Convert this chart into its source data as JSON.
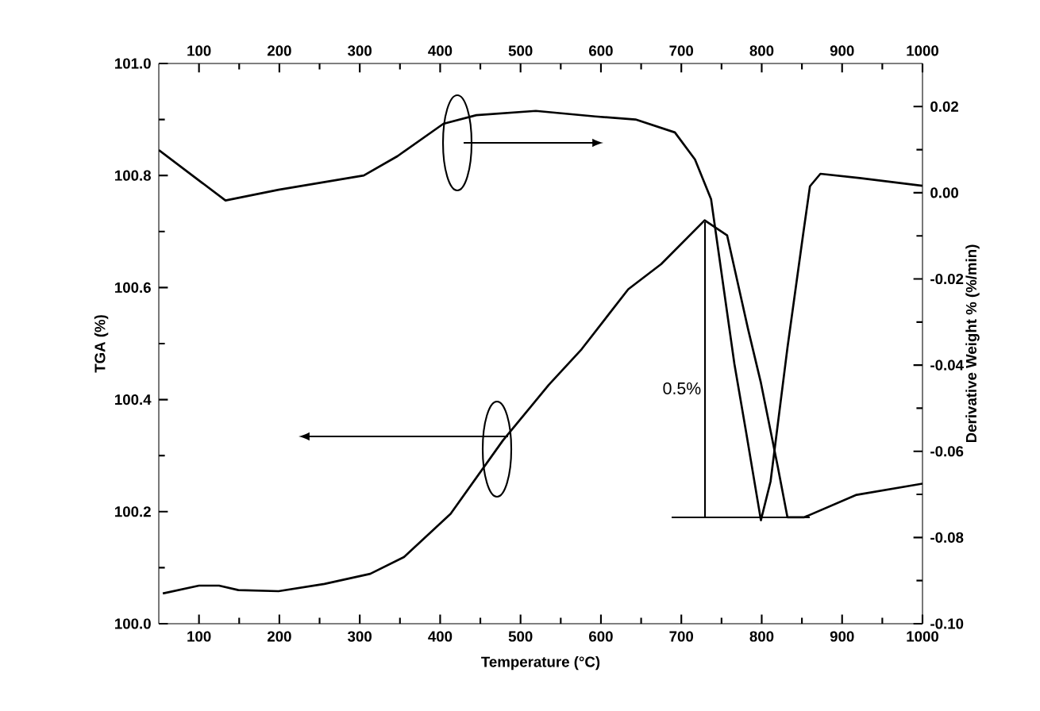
{
  "chart_data": {
    "type": "line",
    "xlabel": "Temperature (°C)",
    "ylabel": "TGA (%)",
    "y2label": "Derivative Weight % (%/min)",
    "xlim": [
      50,
      1000
    ],
    "xticks": [
      100,
      200,
      300,
      400,
      500,
      600,
      700,
      800,
      900,
      1000
    ],
    "x2lim": [
      50,
      1000
    ],
    "x2ticks": [
      100,
      200,
      300,
      400,
      500,
      600,
      700,
      800,
      900,
      1000
    ],
    "ylim": [
      100.0,
      101.0
    ],
    "yticks": [
      {
        "value": 100.0,
        "label": "100.0"
      },
      100.2,
      100.4,
      100.6,
      100.8,
      {
        "value": 101.0,
        "label": "101.0"
      }
    ],
    "y2lim": [
      -0.1,
      0.03
    ],
    "y2ticks": [
      {
        "value": -0.1,
        "label": "-0.10"
      },
      -0.08,
      -0.06,
      -0.04,
      -0.02,
      {
        "value": 0.0,
        "label": "0.00"
      },
      0.02
    ],
    "grid": false,
    "marker": "none",
    "line_style": "solid",
    "annotations": [
      "0.5%"
    ],
    "series": [
      {
        "color": "#000000",
        "axis": "y",
        "x": [
          55,
          100,
          125,
          149,
          199,
          256,
          313,
          355,
          413,
          478,
          535,
          576,
          634,
          675,
          729,
          757,
          783,
          799,
          820,
          832,
          853,
          918,
          1000
        ],
        "values": [
          100.054,
          100.068,
          100.068,
          100.06,
          100.058,
          100.071,
          100.089,
          100.119,
          100.196,
          100.327,
          100.426,
          100.49,
          100.597,
          100.642,
          100.72,
          100.693,
          100.526,
          100.43,
          100.28,
          100.19,
          100.19,
          100.23,
          100.25
        ]
      },
      {
        "color": "#000000",
        "axis": "y2",
        "x": [
          50,
          133,
          199,
          305,
          347,
          404,
          445,
          519,
          593,
          643,
          692,
          717,
          737,
          766,
          781,
          799,
          811,
          832,
          852,
          860,
          873,
          922,
          1000
        ],
        "values": [
          0.0099,
          -0.0018,
          0.0007,
          0.004,
          0.0085,
          0.016,
          0.018,
          0.019,
          0.0177,
          0.017,
          0.014,
          0.0077,
          -0.0015,
          -0.0397,
          -0.056,
          -0.076,
          -0.067,
          -0.036,
          -0.009,
          0.0015,
          0.0044,
          0.0034,
          0.0016
        ]
      }
    ]
  }
}
